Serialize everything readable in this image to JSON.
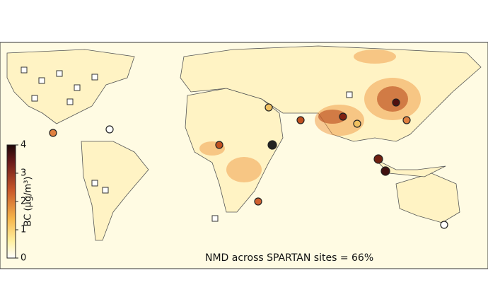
{
  "map": {
    "annotation": "NMD across SPARTAN sites = 66%",
    "colorbar": {
      "label": "BC (μg/m³)",
      "lim": [
        0,
        4
      ],
      "ticks": [
        0,
        1,
        2,
        3,
        4
      ]
    }
  }
}
